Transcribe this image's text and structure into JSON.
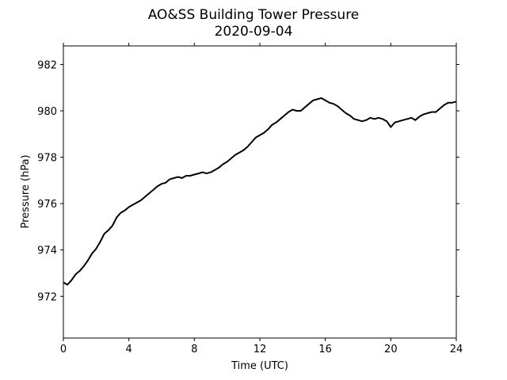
{
  "chart_data": {
    "type": "line",
    "title": "AO&SS Building Tower Pressure",
    "subtitle": "2020-09-04",
    "xlabel": "Time (UTC)",
    "ylabel": "Pressure (hPa)",
    "xlim": [
      0,
      24
    ],
    "ylim": [
      970.2,
      982.8
    ],
    "x_ticks": [
      0,
      4,
      8,
      12,
      16,
      20,
      24
    ],
    "y_ticks": [
      972,
      974,
      976,
      978,
      980,
      982
    ],
    "grid": false,
    "legend": "none",
    "line_color": "#000000",
    "series": [
      {
        "x": [
          0,
          0.25,
          0.5,
          0.75,
          1,
          1.25,
          1.5,
          1.75,
          2,
          2.25,
          2.5,
          2.75,
          3,
          3.25,
          3.5,
          3.75,
          4,
          4.25,
          4.5,
          4.75,
          5,
          5.25,
          5.5,
          5.75,
          6,
          6.25,
          6.5,
          6.75,
          7,
          7.25,
          7.5,
          7.75,
          8,
          8.25,
          8.5,
          8.75,
          9,
          9.25,
          9.5,
          9.75,
          10,
          10.25,
          10.5,
          10.75,
          11,
          11.25,
          11.5,
          11.75,
          12,
          12.25,
          12.5,
          12.75,
          13,
          13.25,
          13.5,
          13.75,
          14,
          14.25,
          14.5,
          14.75,
          15,
          15.25,
          15.5,
          15.75,
          16,
          16.25,
          16.5,
          16.75,
          17,
          17.25,
          17.5,
          17.75,
          18,
          18.25,
          18.5,
          18.75,
          19,
          19.25,
          19.5,
          19.75,
          20,
          20.25,
          20.5,
          20.75,
          21,
          21.25,
          21.5,
          21.75,
          22,
          22.25,
          22.5,
          22.75,
          23,
          23.25,
          23.5,
          23.75,
          24
        ],
        "y": [
          972.6,
          972.5,
          972.7,
          972.95,
          973.1,
          973.3,
          973.55,
          973.85,
          974.05,
          974.35,
          974.7,
          974.85,
          975.05,
          975.4,
          975.6,
          975.7,
          975.85,
          975.95,
          976.05,
          976.15,
          976.3,
          976.45,
          976.6,
          976.75,
          976.85,
          976.9,
          977.05,
          977.1,
          977.15,
          977.1,
          977.2,
          977.2,
          977.25,
          977.3,
          977.35,
          977.3,
          977.35,
          977.45,
          977.55,
          977.7,
          977.8,
          977.95,
          978.1,
          978.2,
          978.3,
          978.45,
          978.65,
          978.85,
          978.95,
          979.05,
          979.2,
          979.4,
          979.5,
          979.65,
          979.8,
          979.95,
          980.05,
          980.0,
          980.0,
          980.15,
          980.3,
          980.45,
          980.5,
          980.55,
          980.45,
          980.35,
          980.3,
          980.2,
          980.05,
          979.9,
          979.8,
          979.65,
          979.6,
          979.55,
          979.6,
          979.7,
          979.65,
          979.7,
          979.65,
          979.55,
          979.3,
          979.5,
          979.55,
          979.6,
          979.65,
          979.7,
          979.6,
          979.75,
          979.85,
          979.9,
          979.95,
          979.95,
          980.1,
          980.25,
          980.35,
          980.35,
          980.4
        ]
      }
    ]
  }
}
